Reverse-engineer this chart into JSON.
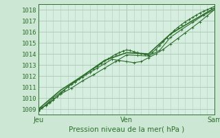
{
  "title": "",
  "xlabel": "Pression niveau de la mer( hPa )",
  "background_color": "#cce8d4",
  "plot_bg_color": "#d6eee0",
  "grid_color": "#b0ccb8",
  "line_color": "#2d6e2d",
  "ylim": [
    1008.5,
    1018.5
  ],
  "xlim": [
    0,
    48
  ],
  "yticks": [
    1009,
    1010,
    1011,
    1012,
    1013,
    1014,
    1015,
    1016,
    1017,
    1018
  ],
  "xtick_positions": [
    0,
    24,
    48
  ],
  "xtick_labels": [
    "Jeu",
    "Ven",
    "Sam"
  ],
  "series1_x": [
    0,
    1,
    2,
    3,
    4,
    5,
    6,
    7,
    8,
    9,
    10,
    11,
    12,
    13,
    14,
    15,
    16,
    17,
    18,
    19,
    20,
    21,
    22,
    23,
    24,
    25,
    26,
    27,
    28,
    29,
    30,
    31,
    32,
    33,
    34,
    35,
    36,
    37,
    38,
    39,
    40,
    41,
    42,
    43,
    44,
    45,
    46,
    47,
    48
  ],
  "series1_y": [
    1009.0,
    1009.15,
    1009.3,
    1009.55,
    1009.8,
    1010.1,
    1010.4,
    1010.7,
    1011.0,
    1011.25,
    1011.5,
    1011.75,
    1012.0,
    1012.2,
    1012.45,
    1012.65,
    1012.85,
    1013.1,
    1013.35,
    1013.55,
    1013.75,
    1013.95,
    1014.1,
    1014.25,
    1014.35,
    1014.3,
    1014.2,
    1014.1,
    1014.0,
    1013.95,
    1013.9,
    1014.1,
    1014.4,
    1014.75,
    1015.1,
    1015.45,
    1015.8,
    1016.1,
    1016.4,
    1016.65,
    1016.9,
    1017.1,
    1017.3,
    1017.5,
    1017.7,
    1017.85,
    1018.0,
    1018.15,
    1018.3
  ],
  "series2_x": [
    0,
    2,
    4,
    6,
    8,
    10,
    12,
    14,
    16,
    18,
    20,
    22,
    24,
    26,
    28,
    30,
    32,
    34,
    36,
    38,
    40,
    42,
    44,
    46,
    48
  ],
  "series2_y": [
    1008.8,
    1009.4,
    1010.0,
    1010.5,
    1011.0,
    1011.45,
    1011.9,
    1012.3,
    1012.7,
    1013.1,
    1013.5,
    1013.4,
    1013.3,
    1013.2,
    1013.3,
    1013.65,
    1014.0,
    1014.4,
    1014.9,
    1015.4,
    1015.9,
    1016.4,
    1016.9,
    1017.45,
    1018.0
  ],
  "series3_x": [
    0,
    6,
    12,
    18,
    24,
    30,
    36,
    42,
    48
  ],
  "series3_y": [
    1009.0,
    1010.7,
    1012.0,
    1013.4,
    1014.1,
    1014.0,
    1015.8,
    1017.0,
    1018.15
  ],
  "series4_x": [
    0,
    3,
    6,
    9,
    12,
    15,
    18,
    21,
    24,
    27,
    30,
    33,
    36,
    39,
    42,
    45,
    48
  ],
  "series4_y": [
    1008.85,
    1009.6,
    1010.35,
    1010.9,
    1011.55,
    1012.1,
    1012.7,
    1013.3,
    1013.9,
    1013.85,
    1013.8,
    1014.3,
    1015.5,
    1016.2,
    1016.85,
    1017.5,
    1018.0
  ]
}
